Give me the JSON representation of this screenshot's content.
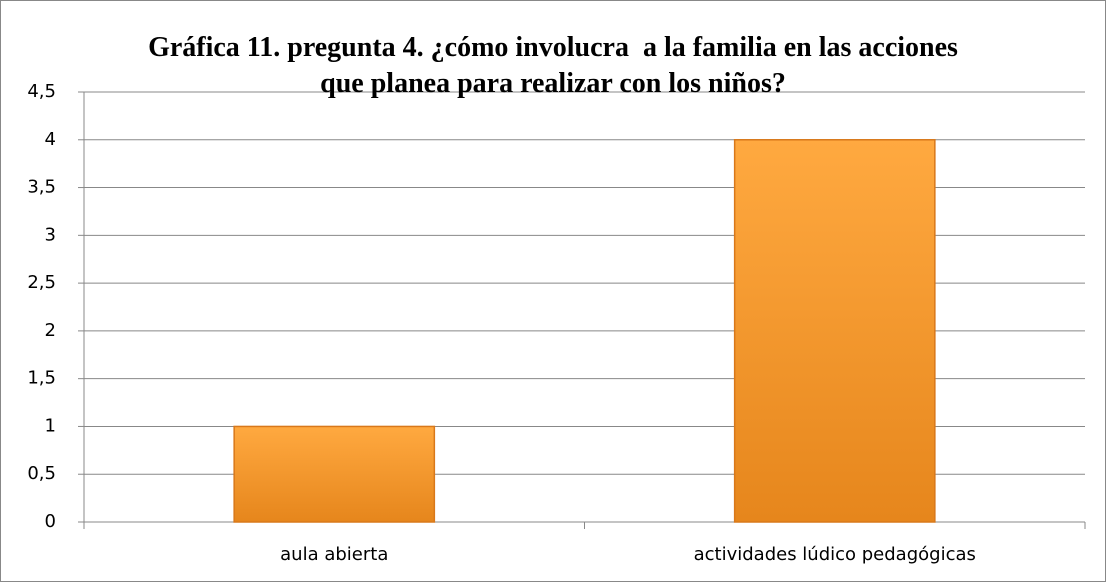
{
  "chart_data": {
    "type": "bar",
    "title": "Gráfica 11. pregunta 4. ¿cómo involucra  a la familia en las acciones que planea para realizar con los niños?",
    "categories": [
      "aula abierta",
      "actividades lúdico pedagógicas"
    ],
    "values": [
      1,
      4
    ],
    "color": "#f7931e",
    "ylim": [
      0,
      4.5
    ],
    "yticks": [
      0,
      {
        "value": 0.5,
        "label": "0,5"
      },
      1,
      {
        "value": 1.5,
        "label": "1,5"
      },
      2,
      {
        "value": 2.5,
        "label": "2,5"
      },
      3,
      {
        "value": 3.5,
        "label": "3,5"
      },
      4,
      {
        "value": 4.5,
        "label": "4,5"
      }
    ],
    "grid": true
  }
}
